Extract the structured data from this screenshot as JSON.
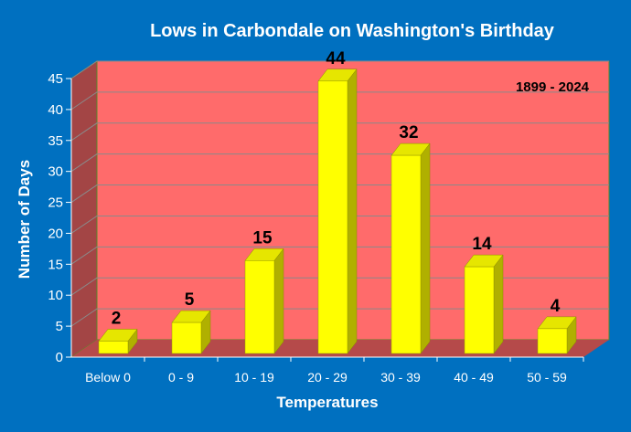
{
  "chart_data": {
    "type": "bar",
    "title": "Lows in Carbondale on Washington's Birthday",
    "annotation": "1899 - 2024",
    "xlabel": "Temperatures",
    "ylabel": "Number of Days",
    "categories": [
      "Below 0",
      "0 - 9",
      "10 - 19",
      "20 - 29",
      "30 - 39",
      "40 - 49",
      "50 - 59"
    ],
    "values": [
      2,
      5,
      15,
      44,
      32,
      14,
      4
    ],
    "data_labels": [
      "2",
      "5",
      "15",
      "44",
      "32",
      "14",
      "4"
    ],
    "ylim": [
      0,
      45
    ],
    "yticks": [
      "0",
      "5",
      "10",
      "15",
      "20",
      "25",
      "30",
      "35",
      "40",
      "45"
    ],
    "grid": true,
    "legend": "none",
    "style": "3d",
    "colors": {
      "background": "#0070c0",
      "plot_back_wall": "#ff6b6b",
      "plot_side_wall": "#a34545",
      "plot_floor": "#b54a4a",
      "bar_front": "#ffff00",
      "bar_side": "#b0b000",
      "bar_top": "#e6e600",
      "gridline": "#8a8a8a"
    }
  }
}
